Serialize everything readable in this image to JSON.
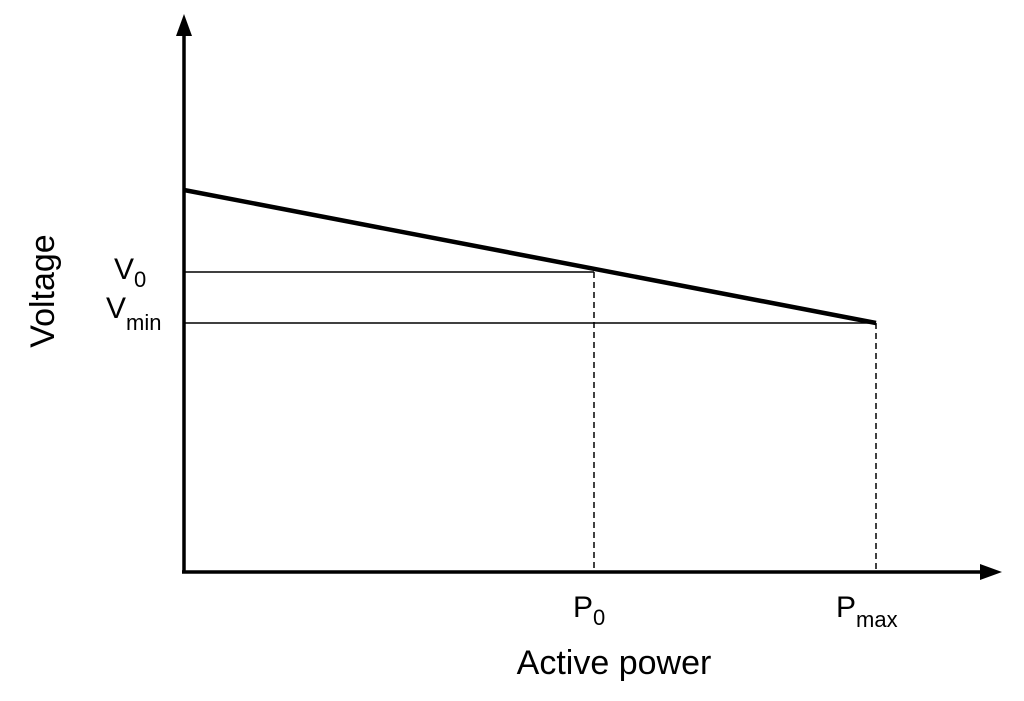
{
  "axes": {
    "x_label": "Active power",
    "y_label": "Voltage"
  },
  "symbols": {
    "v0": {
      "main": "V",
      "sub": "0"
    },
    "vmin": {
      "main": "V",
      "sub": "min"
    },
    "p0": {
      "main": "P",
      "sub": "0"
    },
    "pmax": {
      "main": "P",
      "sub": "max"
    }
  },
  "colors": {
    "ink": "#000000",
    "background": "#ffffff"
  }
}
